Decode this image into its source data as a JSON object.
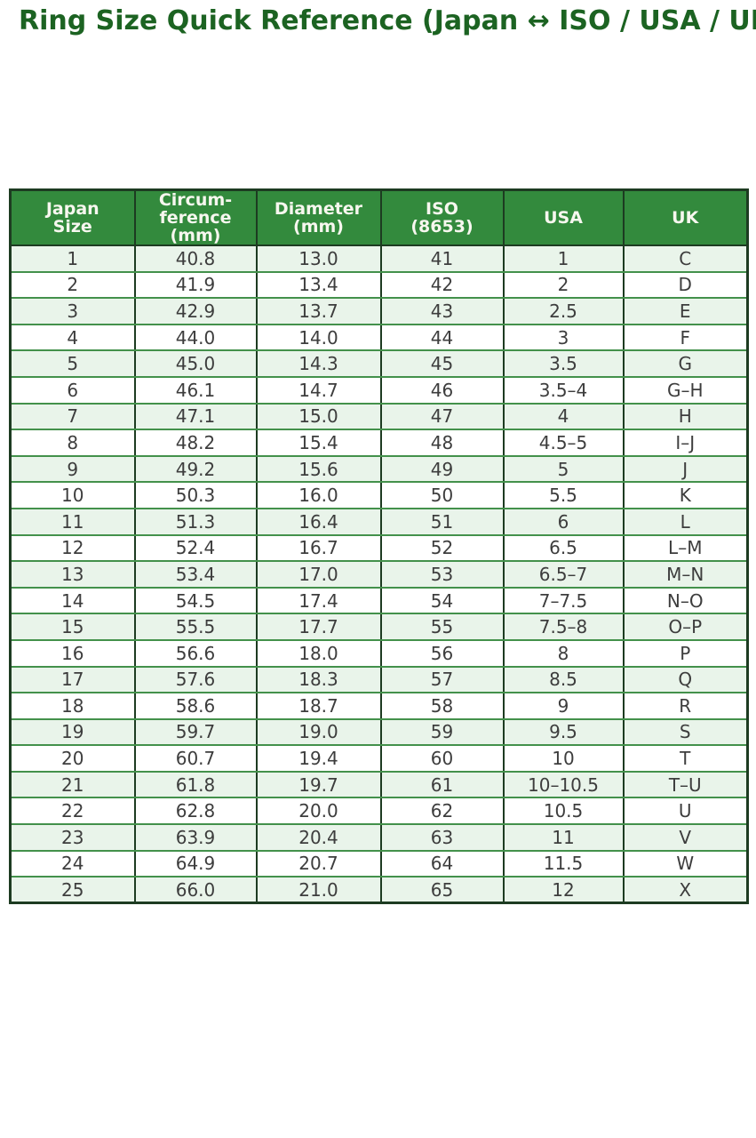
{
  "title": "Ring Size Quick Reference (Japan ↔ ISO / USA / UK)",
  "colors": {
    "title_color": "#1c6322",
    "header_bg": "#338a3d",
    "header_text": "#f7f7ef",
    "row_alt_bg": "#e9f4ea",
    "row_bg": "#ffffff",
    "cell_text": "#3d3d3d",
    "border_dark": "#1d3b21",
    "border_green": "#43914b"
  },
  "chart_data": {
    "type": "table",
    "title": "Ring Size Quick Reference (Japan ↔ ISO / USA / UK)",
    "columns": [
      "Japan Size",
      "Circumference (mm)",
      "Diameter (mm)",
      "ISO (8653)",
      "USA",
      "UK"
    ],
    "columns_display": [
      "Japan\nSize",
      "Circum-\nference\n(mm)",
      "Diameter\n(mm)",
      "ISO\n(8653)",
      "USA",
      "UK"
    ],
    "rows": [
      [
        "1",
        "40.8",
        "13.0",
        "41",
        "1",
        "C"
      ],
      [
        "2",
        "41.9",
        "13.4",
        "42",
        "2",
        "D"
      ],
      [
        "3",
        "42.9",
        "13.7",
        "43",
        "2.5",
        "E"
      ],
      [
        "4",
        "44.0",
        "14.0",
        "44",
        "3",
        "F"
      ],
      [
        "5",
        "45.0",
        "14.3",
        "45",
        "3.5",
        "G"
      ],
      [
        "6",
        "46.1",
        "14.7",
        "46",
        "3.5–4",
        "G–H"
      ],
      [
        "7",
        "47.1",
        "15.0",
        "47",
        "4",
        "H"
      ],
      [
        "8",
        "48.2",
        "15.4",
        "48",
        "4.5–5",
        "I–J"
      ],
      [
        "9",
        "49.2",
        "15.6",
        "49",
        "5",
        "J"
      ],
      [
        "10",
        "50.3",
        "16.0",
        "50",
        "5.5",
        "K"
      ],
      [
        "11",
        "51.3",
        "16.4",
        "51",
        "6",
        "L"
      ],
      [
        "12",
        "52.4",
        "16.7",
        "52",
        "6.5",
        "L–M"
      ],
      [
        "13",
        "53.4",
        "17.0",
        "53",
        "6.5–7",
        "M–N"
      ],
      [
        "14",
        "54.5",
        "17.4",
        "54",
        "7–7.5",
        "N–O"
      ],
      [
        "15",
        "55.5",
        "17.7",
        "55",
        "7.5–8",
        "O–P"
      ],
      [
        "16",
        "56.6",
        "18.0",
        "56",
        "8",
        "P"
      ],
      [
        "17",
        "57.6",
        "18.3",
        "57",
        "8.5",
        "Q"
      ],
      [
        "18",
        "58.6",
        "18.7",
        "58",
        "9",
        "R"
      ],
      [
        "19",
        "59.7",
        "19.0",
        "59",
        "9.5",
        "S"
      ],
      [
        "20",
        "60.7",
        "19.4",
        "60",
        "10",
        "T"
      ],
      [
        "21",
        "61.8",
        "19.7",
        "61",
        "10–10.5",
        "T–U"
      ],
      [
        "22",
        "62.8",
        "20.0",
        "62",
        "10.5",
        "U"
      ],
      [
        "23",
        "63.9",
        "20.4",
        "63",
        "11",
        "V"
      ],
      [
        "24",
        "64.9",
        "20.7",
        "64",
        "11.5",
        "W"
      ],
      [
        "25",
        "66.0",
        "21.0",
        "65",
        "12",
        "X"
      ]
    ]
  }
}
